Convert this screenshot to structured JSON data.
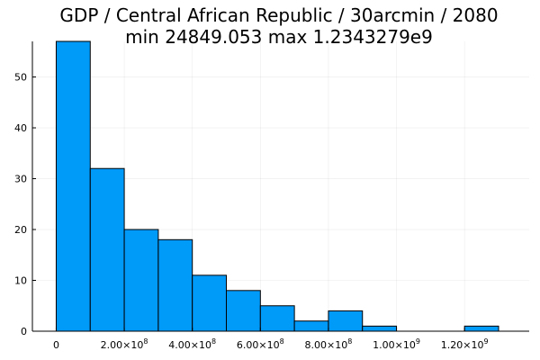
{
  "chart_data": {
    "type": "bar",
    "title": "GDP / Central African Republic / 30arcmin / 2080",
    "subtitle": "min 24849.053  max 1.2343279e9",
    "xlabel": "",
    "ylabel": "",
    "bin_width": 100000000,
    "bin_start": 0,
    "values": [
      57,
      32,
      20,
      18,
      11,
      8,
      5,
      2,
      4,
      1,
      0,
      0,
      1
    ],
    "xlim": [
      -70000000,
      1390000000
    ],
    "ylim": [
      0,
      57
    ],
    "x_ticks": [
      {
        "value": 0,
        "mantissa": "0",
        "exp": ""
      },
      {
        "value": 200000000,
        "mantissa": "2.00×10",
        "exp": "8"
      },
      {
        "value": 400000000,
        "mantissa": "4.00×10",
        "exp": "8"
      },
      {
        "value": 600000000,
        "mantissa": "6.00×10",
        "exp": "8"
      },
      {
        "value": 800000000,
        "mantissa": "8.00×10",
        "exp": "8"
      },
      {
        "value": 1000000000,
        "mantissa": "1.00×10",
        "exp": "9"
      },
      {
        "value": 1200000000,
        "mantissa": "1.20×10",
        "exp": "9"
      }
    ],
    "y_ticks": [
      0,
      10,
      20,
      30,
      40,
      50
    ],
    "grid": true,
    "legend": "none",
    "bar_color": "#009af9",
    "bar_stroke": "#000000"
  }
}
